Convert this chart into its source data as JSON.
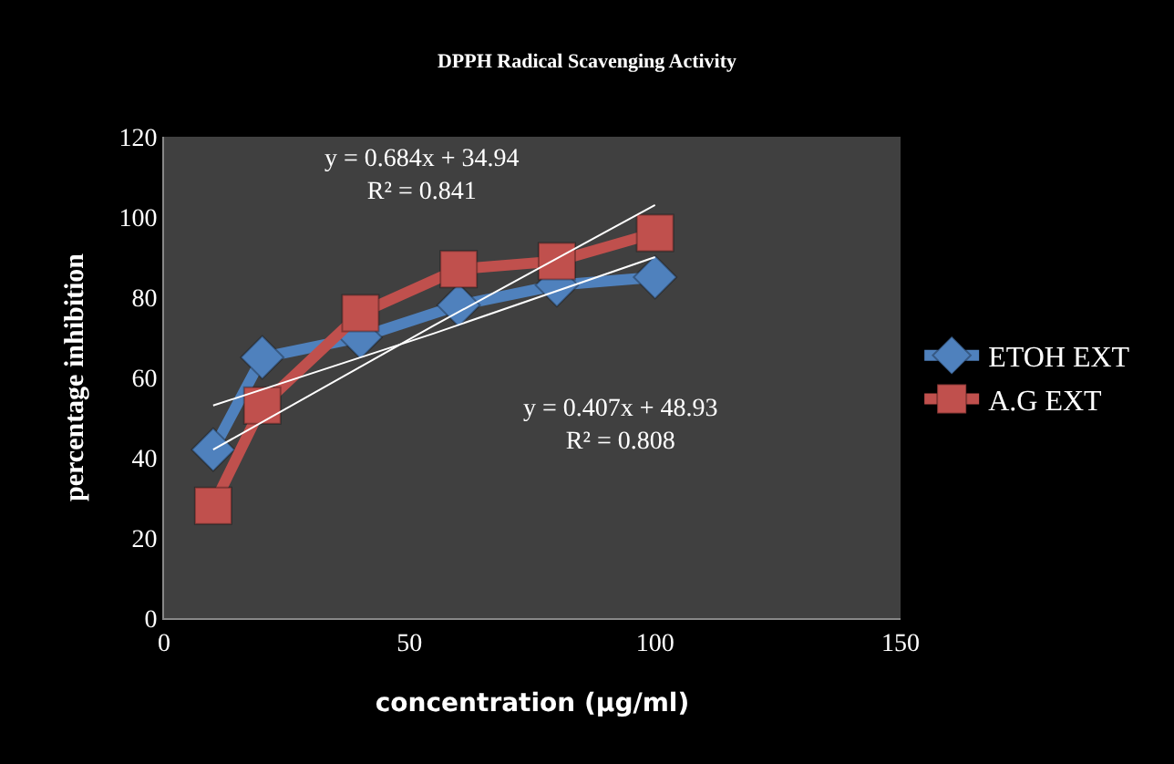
{
  "chart_data": {
    "type": "line",
    "title": "DPPH Radical Scavenging Activity",
    "xlabel": "concentration (µg/ml)",
    "ylabel": "percentage inhibition",
    "x": [
      10,
      20,
      40,
      60,
      80,
      100
    ],
    "series": [
      {
        "name": "ETOH EXT",
        "color": "#4f81bd",
        "values": [
          42,
          65,
          70,
          78,
          83,
          85
        ],
        "marker": "diamond"
      },
      {
        "name": "A.G EXT",
        "color": "#c0504d",
        "values": [
          28,
          53,
          76,
          87,
          89,
          96
        ],
        "marker": "square"
      },
      {
        "type": "line",
        "color": "#ffffff",
        "x": [
          10,
          55,
          100
        ],
        "values": [
          42,
          73,
          103
        ],
        "marker": "none"
      },
      {
        "type": "line",
        "color": "#ffffff",
        "x": [
          10,
          55,
          100
        ],
        "values": [
          53,
          71,
          90
        ],
        "marker": "none"
      }
    ],
    "annotations": [
      "y = 0.684x + 34.94\nR² = 0.841",
      "y = 0.407x + 48.93\nR² = 0.808"
    ],
    "xlim": [
      0,
      150
    ],
    "xticks": [
      0,
      50,
      100,
      150
    ],
    "ylim": [
      0,
      120
    ],
    "yticks": [
      0,
      20,
      40,
      60,
      80,
      100,
      120
    ],
    "grid": false,
    "legend": "right"
  }
}
